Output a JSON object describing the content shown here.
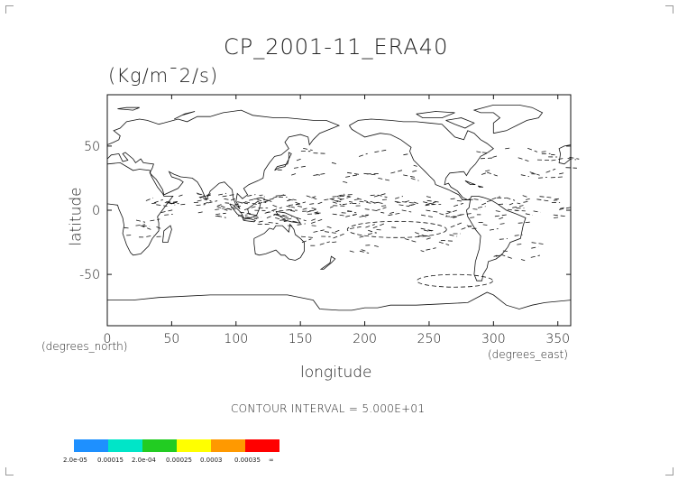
{
  "chart_data": {
    "type": "contour",
    "title": "CP_2001-11_ERA40",
    "subtitle": "(Kg/m¯2/s)",
    "xlabel": "longitude",
    "ylabel": "latitude",
    "x_units_left": "(degrees_north)",
    "x_units_right": "(degrees_east)",
    "xlim": [
      0,
      360
    ],
    "ylim": [
      -90,
      90
    ],
    "xticks": [
      0,
      50,
      100,
      150,
      200,
      250,
      300,
      350
    ],
    "yticks": [
      -50,
      0,
      50
    ],
    "contour_interval_text": "CONTOUR INTERVAL = 5.000E+01",
    "grid": false,
    "colorbar": {
      "colors": [
        "#1e90ff",
        "#00e5c8",
        "#22cc22",
        "#ffff00",
        "#ff9900",
        "#ff0000"
      ],
      "labels": [
        "2.0e-05",
        "0.00015",
        "2.0e-04",
        "0.00025",
        "0.0003",
        "0.00035",
        "∞"
      ]
    }
  }
}
